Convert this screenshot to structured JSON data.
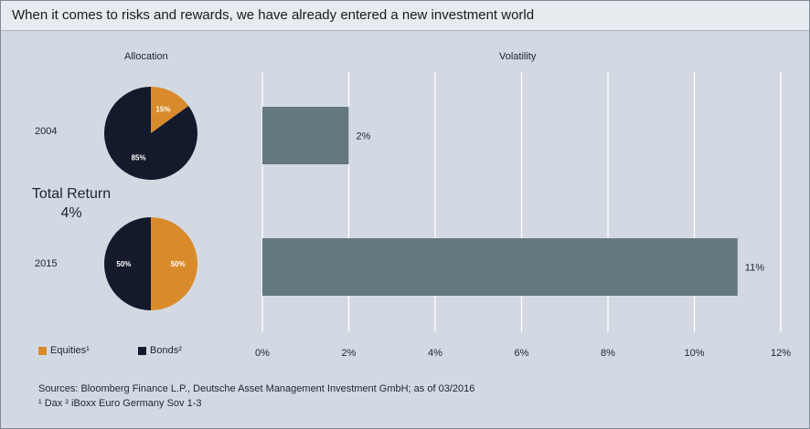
{
  "title": "When it comes to risks and rewards, we have already entered a new investment world",
  "allocation": {
    "header": "Allocation",
    "rows": [
      {
        "year": "2004",
        "equities": 15,
        "bonds": 85,
        "equities_label": "15%",
        "bonds_label": "85%"
      },
      {
        "year": "2015",
        "equities": 50,
        "bonds": 50,
        "equities_label": "50%",
        "bonds_label": "50%"
      }
    ]
  },
  "total_return": {
    "label": "Total Return",
    "value": "4%"
  },
  "legend": {
    "equities": "Equities¹",
    "bonds": "Bonds²"
  },
  "colors": {
    "equities": "#d98b2b",
    "bonds": "#14192b",
    "bar": "#64797f",
    "grid": "#ffffff",
    "panel": "#d3d9e3"
  },
  "chart_data": [
    {
      "type": "pie",
      "title": "Allocation",
      "category": "2004",
      "labels": [
        "Equities¹",
        "Bonds²"
      ],
      "values": [
        15,
        85
      ]
    },
    {
      "type": "pie",
      "title": "Allocation",
      "category": "2015",
      "labels": [
        "Equities¹",
        "Bonds²"
      ],
      "values": [
        50,
        50
      ]
    },
    {
      "type": "bar",
      "orientation": "horizontal",
      "title": "Volatility",
      "categories": [
        "2004",
        "2015"
      ],
      "values": [
        2,
        11
      ],
      "value_labels": [
        "2%",
        "11%"
      ],
      "xlim": [
        0,
        12
      ],
      "xticks": [
        "0%",
        "2%",
        "4%",
        "6%",
        "8%",
        "10%",
        "12%"
      ],
      "grid": true
    }
  ],
  "sources": {
    "line1": "Sources: Bloomberg Finance L.P., Deutsche Asset Management Investment GmbH; as of 03/2016",
    "line2": "¹ Dax   ² iBoxx Euro Germany Sov 1-3"
  }
}
